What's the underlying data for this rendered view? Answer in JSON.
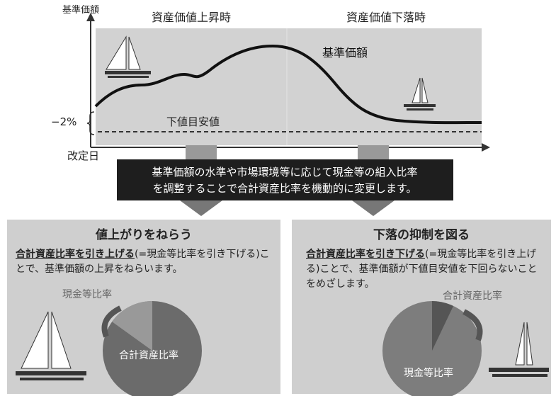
{
  "chart": {
    "y_axis_label": "基準価額",
    "rise_header": "資産価値上昇時",
    "fall_header": "資産価値下落時",
    "line_label": "基準価額",
    "minus_label": "−2%",
    "floor_label": "下値目安値",
    "x_start_label": "改定日"
  },
  "banner": {
    "lines": [
      "基準価額の水準や市場環境等に応じて現金等の組入比率",
      "を調整することで合計資産比率を機動的に変更します。"
    ]
  },
  "panels": [
    {
      "title": "値上がりをねらう",
      "emphasis": "合計資産比率を引き上げる",
      "body": "(=現金等比率を引き下げる)ことで、基準価額の上昇をねらいます。",
      "small_label": "現金等比率",
      "large_label": "合計資産比率"
    },
    {
      "title": "下落の抑制を図る",
      "emphasis": "合計資産比率を引き下げる",
      "body": "(=現金等比率を引き上げる)ことで、基準価額が下値目安値を下回らないことをめざします。",
      "small_label": "合計資産比率",
      "large_label": "現金等比率"
    }
  ]
}
